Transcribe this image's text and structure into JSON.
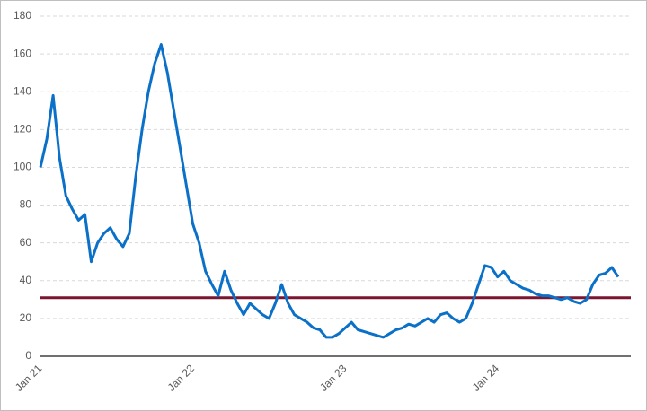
{
  "chart_data": {
    "type": "line",
    "categories": [
      "Jan 21",
      null,
      null,
      null,
      null,
      null,
      null,
      null,
      null,
      null,
      null,
      null,
      null,
      null,
      null,
      null,
      null,
      null,
      null,
      null,
      null,
      null,
      null,
      null,
      "Jan 22",
      null,
      null,
      null,
      null,
      null,
      null,
      null,
      null,
      null,
      null,
      null,
      null,
      null,
      null,
      null,
      null,
      null,
      null,
      null,
      null,
      null,
      null,
      null,
      "Jan 23",
      null,
      null,
      null,
      null,
      null,
      null,
      null,
      null,
      null,
      null,
      null,
      null,
      null,
      null,
      null,
      null,
      null,
      null,
      null,
      null,
      null,
      null,
      null,
      "Jan 24",
      null,
      null,
      null,
      null,
      null,
      null,
      null,
      null,
      null,
      null,
      null,
      null,
      null,
      null,
      null,
      null,
      null,
      null,
      null
    ],
    "series": [
      {
        "color": "#0a70c8",
        "values": [
          100,
          115,
          138,
          105,
          85,
          78,
          72,
          75,
          50,
          60,
          65,
          68,
          62,
          58,
          65,
          95,
          120,
          140,
          155,
          165,
          150,
          130,
          110,
          90,
          70,
          60,
          45,
          38,
          32,
          45,
          35,
          28,
          22,
          28,
          25,
          22,
          20,
          28,
          38,
          28,
          22,
          20,
          18,
          15,
          14,
          10,
          10,
          12,
          15,
          18,
          14,
          13,
          12,
          11,
          10,
          12,
          14,
          15,
          17,
          16,
          18,
          20,
          18,
          22,
          23,
          20,
          18,
          20,
          28,
          38,
          48,
          47,
          42,
          45,
          40,
          38,
          36,
          35,
          33,
          32,
          32,
          31,
          30,
          31,
          29,
          28,
          30,
          38,
          43,
          44,
          47,
          42
        ]
      }
    ],
    "reference_line": {
      "value": 31,
      "color": "#7a1630"
    },
    "ylim": [
      0,
      180
    ],
    "yticks": [
      0,
      20,
      40,
      60,
      80,
      100,
      120,
      140,
      160,
      180
    ],
    "grid": true
  }
}
